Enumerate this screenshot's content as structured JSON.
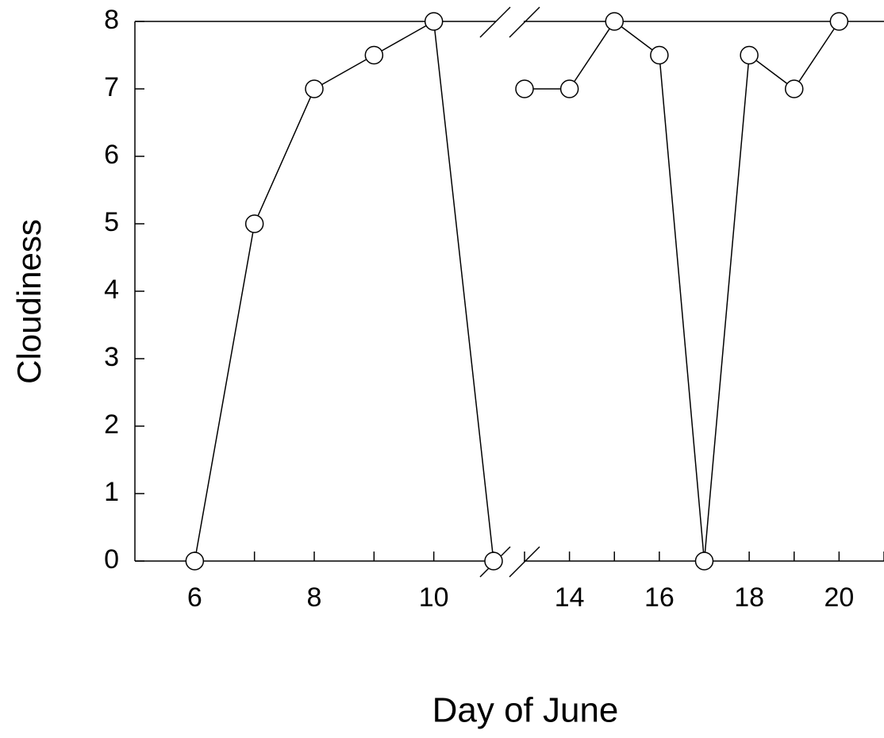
{
  "chart_data": {
    "type": "line",
    "xlabel": "Day of June",
    "ylabel": "Cloudiness",
    "ylim": [
      0,
      8
    ],
    "yticks": [
      0,
      1,
      2,
      3,
      4,
      5,
      6,
      7,
      8
    ],
    "marker": "open-circle",
    "color": "#000000",
    "panels": [
      {
        "xlim": [
          5,
          11
        ],
        "xticks": [
          6,
          8,
          10
        ],
        "minor_xticks": [
          7,
          9,
          11
        ],
        "x": [
          6,
          7,
          8,
          9,
          10,
          11
        ],
        "values": [
          0,
          5,
          7,
          7.5,
          8,
          0
        ]
      },
      {
        "xlim": [
          13,
          21
        ],
        "xticks": [
          14,
          16,
          18,
          20
        ],
        "minor_xticks": [
          13,
          15,
          17,
          19,
          21
        ],
        "x": [
          13,
          14,
          15,
          16,
          17,
          18,
          19,
          20
        ],
        "values": [
          7,
          7,
          8,
          7.5,
          0,
          7.5,
          7,
          8
        ]
      }
    ]
  }
}
